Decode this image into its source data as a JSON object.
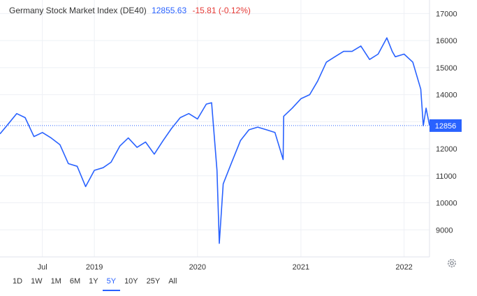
{
  "header": {
    "title": "Germany Stock Market Index (DE40)",
    "price": "12855.63",
    "change": "-15.81 (-0.12%)"
  },
  "periods": {
    "items": [
      "1D",
      "1W",
      "1M",
      "6M",
      "1Y",
      "5Y",
      "10Y",
      "25Y",
      "All"
    ],
    "active": "5Y"
  },
  "settings": {
    "icon": "gear-icon"
  },
  "colors": {
    "line": "#2962ff",
    "negative": "#e53935",
    "axis_text": "#333333",
    "grid": "#eef0f5"
  },
  "chart_data": {
    "type": "line",
    "title": "Germany Stock Market Index (DE40)",
    "xlabel": "",
    "ylabel": "",
    "ylim": [
      8000,
      17500
    ],
    "xlim": [
      "2018-02",
      "2022-04"
    ],
    "y_ticks": [
      9000,
      10000,
      11000,
      12000,
      13000,
      14000,
      15000,
      16000,
      17000
    ],
    "x_ticks": [
      {
        "label": "Jul",
        "date": "2018-07"
      },
      {
        "label": "2019",
        "date": "2019-01"
      },
      {
        "label": "2020",
        "date": "2020-01"
      },
      {
        "label": "2021",
        "date": "2021-01"
      },
      {
        "label": "2022",
        "date": "2022-01"
      }
    ],
    "last_value_label": "12856",
    "last_value": 12856,
    "grid": true,
    "series": [
      {
        "x": [
          "2018-02",
          "2018-03",
          "2018-04",
          "2018-05",
          "2018-06",
          "2018-07",
          "2018-08",
          "2018-09",
          "2018-10",
          "2018-11",
          "2018-12",
          "2019-01",
          "2019-02",
          "2019-03",
          "2019-04",
          "2019-05",
          "2019-06",
          "2019-07",
          "2019-08",
          "2019-09",
          "2019-10",
          "2019-11",
          "2019-12",
          "2020-01",
          "2020-02",
          "2020-02-20",
          "2020-03-10",
          "2020-03-18",
          "2020-04",
          "2020-05",
          "2020-06",
          "2020-07",
          "2020-08",
          "2020-09",
          "2020-10",
          "2020-10-30",
          "2020-11",
          "2020-12",
          "2021-01",
          "2021-02",
          "2021-03",
          "2021-04",
          "2021-05",
          "2021-06",
          "2021-07",
          "2021-08",
          "2021-09",
          "2021-10",
          "2021-11",
          "2021-11-20",
          "2021-12",
          "2022-01",
          "2022-02",
          "2022-03",
          "2022-03-10",
          "2022-03-20",
          "2022-04"
        ],
        "values": [
          12550,
          12900,
          13300,
          13150,
          12450,
          12600,
          12400,
          12150,
          11450,
          11350,
          10600,
          11200,
          11300,
          11500,
          12100,
          12400,
          12050,
          12250,
          11800,
          12300,
          12750,
          13150,
          13300,
          13100,
          13650,
          13700,
          11200,
          8500,
          10700,
          11500,
          12300,
          12700,
          12800,
          12700,
          12600,
          11600,
          13200,
          13500,
          13850,
          14000,
          14500,
          15200,
          15400,
          15600,
          15600,
          15800,
          15300,
          15500,
          16100,
          15600,
          15400,
          15500,
          15200,
          14200,
          12850,
          13500,
          12856
        ]
      }
    ]
  }
}
